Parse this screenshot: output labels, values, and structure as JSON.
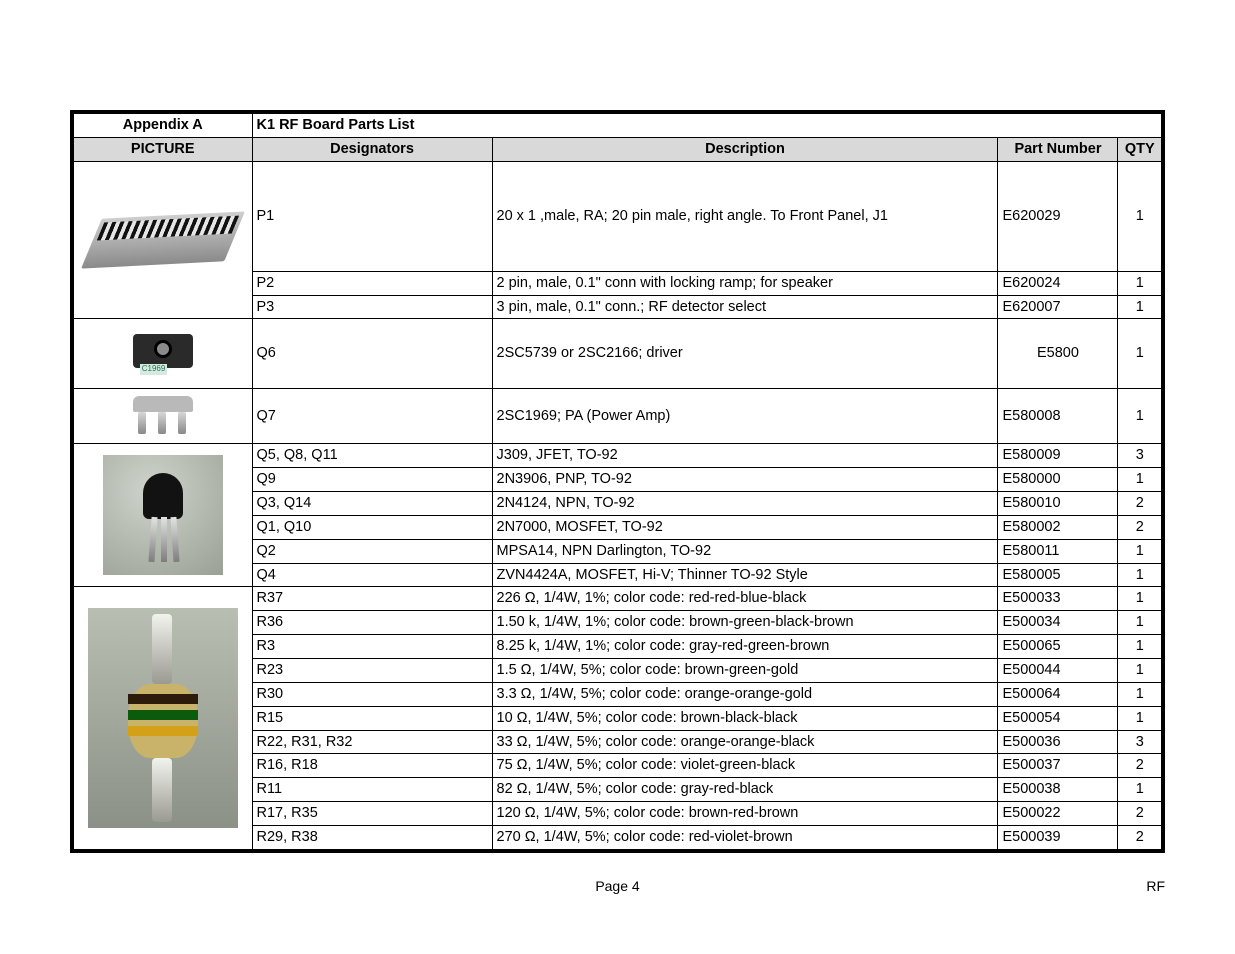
{
  "header": {
    "appendix_label": "Appendix A",
    "title": "K1 RF Board Parts List"
  },
  "columns": {
    "picture": "PICTURE",
    "designators": "Designators",
    "description": "Description",
    "part_number": "Part Number",
    "qty": "QTY"
  },
  "rows": [
    {
      "designators": "P1",
      "description": "20 x 1 ,male, RA; 20 pin male, right angle. To Front Panel, J1",
      "part": "E620029",
      "qty": "1"
    },
    {
      "designators": "P2",
      "description": "2 pin, male, 0.1\" conn with locking ramp; for speaker",
      "part": "E620024",
      "qty": "1"
    },
    {
      "designators": "P3",
      "description": "3 pin, male, 0.1\" conn.; RF detector select",
      "part": "E620007",
      "qty": "1"
    },
    {
      "designators": "Q6",
      "description": "2SC5739 or 2SC2166; driver",
      "part": "E5800",
      "qty": "1"
    },
    {
      "designators": "Q7",
      "description": "2SC1969; PA (Power Amp)",
      "part": "E580008",
      "qty": "1"
    },
    {
      "designators": "Q5, Q8, Q11",
      "description": "J309, JFET, TO-92",
      "part": "E580009",
      "qty": "3"
    },
    {
      "designators": "Q9",
      "description": "2N3906, PNP, TO-92",
      "part": "E580000",
      "qty": "1"
    },
    {
      "designators": "Q3, Q14",
      "description": "2N4124, NPN, TO-92",
      "part": "E580010",
      "qty": "2"
    },
    {
      "designators": "Q1, Q10",
      "description": "2N7000, MOSFET, TO-92",
      "part": "E580002",
      "qty": "2"
    },
    {
      "designators": "Q2",
      "description": "MPSA14, NPN Darlington, TO-92",
      "part": "E580011",
      "qty": "1"
    },
    {
      "designators": "Q4",
      "description": "ZVN4424A, MOSFET, Hi-V; Thinner TO-92 Style",
      "part": "E580005",
      "qty": "1"
    },
    {
      "designators": "R37",
      "description": "226 Ω, 1/4W, 1%; color code: red-red-blue-black",
      "part": "E500033",
      "qty": "1"
    },
    {
      "designators": "R36",
      "description": "1.50 k, 1/4W, 1%; color code: brown-green-black-brown",
      "part": "E500034",
      "qty": "1"
    },
    {
      "designators": "R3",
      "description": "8.25 k, 1/4W, 1%; color code: gray-red-green-brown",
      "part": "E500065",
      "qty": "1"
    },
    {
      "designators": "R23",
      "description": "1.5 Ω, 1/4W, 5%; color code: brown-green-gold",
      "part": "E500044",
      "qty": "1"
    },
    {
      "designators": "R30",
      "description": "3.3 Ω, 1/4W, 5%; color code: orange-orange-gold",
      "part": "E500064",
      "qty": "1"
    },
    {
      "designators": "R15",
      "description": "10 Ω, 1/4W, 5%; color code: brown-black-black",
      "part": "E500054",
      "qty": "1"
    },
    {
      "designators": "R22, R31, R32",
      "description": "33 Ω, 1/4W, 5%; color code: orange-orange-black",
      "part": "E500036",
      "qty": "3"
    },
    {
      "designators": "R16, R18",
      "description": "75 Ω, 1/4W, 5%; color code: violet-green-black",
      "part": "E500037",
      "qty": "2"
    },
    {
      "designators": "R11",
      "description": "82 Ω, 1/4W, 5%; color code: gray-red-black",
      "part": "E500038",
      "qty": "1"
    },
    {
      "designators": "R17, R35",
      "description": "120 Ω, 1/4W, 5%; color code: brown-red-brown",
      "part": "E500022",
      "qty": "2"
    },
    {
      "designators": "R29, R38",
      "description": "270 Ω, 1/4W, 5%; color code: red-violet-brown",
      "part": "E500039",
      "qty": "2"
    }
  ],
  "footer": {
    "page": "Page 4",
    "corner": "RF"
  },
  "style": {
    "header_bg": "#d9d9d9",
    "border_color": "#000000",
    "font_family": "Arial",
    "body_font_size_pt": 11
  }
}
